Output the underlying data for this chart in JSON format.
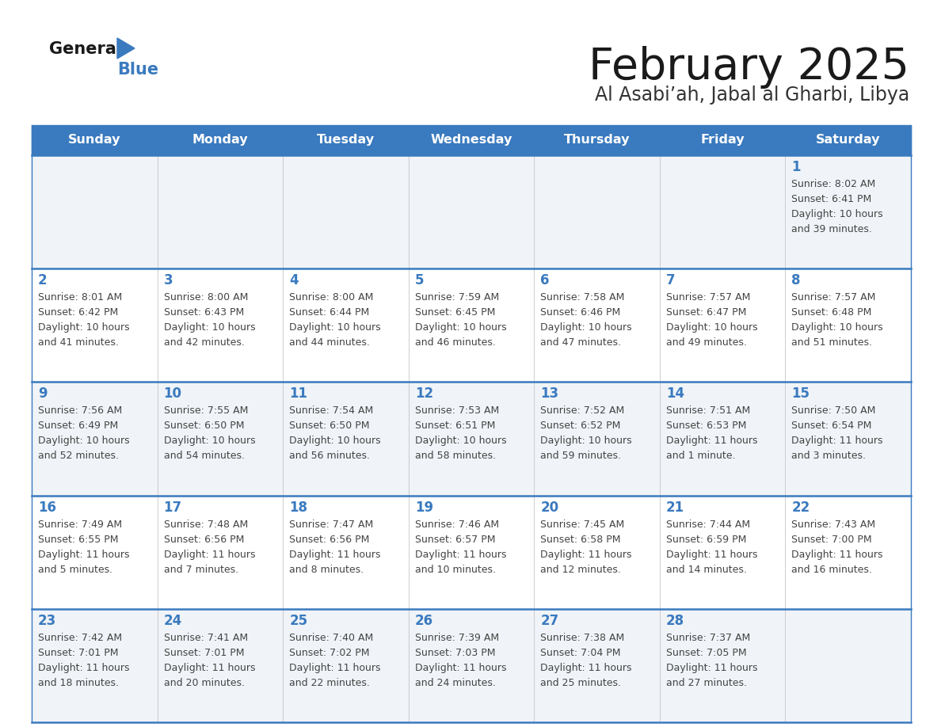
{
  "title": "February 2025",
  "subtitle": "Al Asabi’ah, Jabal al Gharbi, Libya",
  "header_color": "#3a7abf",
  "header_text_color": "#ffffff",
  "bg_color": "#ffffff",
  "cell_bg_light": "#f0f4f8",
  "day_headers": [
    "Sunday",
    "Monday",
    "Tuesday",
    "Wednesday",
    "Thursday",
    "Friday",
    "Saturday"
  ],
  "title_color": "#1a1a1a",
  "subtitle_color": "#333333",
  "day_number_color": "#3a7abf",
  "text_color": "#444444",
  "line_color": "#3a7abf",
  "calendar": [
    [
      null,
      null,
      null,
      null,
      null,
      null,
      {
        "day": 1,
        "sunrise": "8:02 AM",
        "sunset": "6:41 PM",
        "dl1": "Daylight: 10 hours",
        "dl2": "and 39 minutes."
      }
    ],
    [
      {
        "day": 2,
        "sunrise": "8:01 AM",
        "sunset": "6:42 PM",
        "dl1": "Daylight: 10 hours",
        "dl2": "and 41 minutes."
      },
      {
        "day": 3,
        "sunrise": "8:00 AM",
        "sunset": "6:43 PM",
        "dl1": "Daylight: 10 hours",
        "dl2": "and 42 minutes."
      },
      {
        "day": 4,
        "sunrise": "8:00 AM",
        "sunset": "6:44 PM",
        "dl1": "Daylight: 10 hours",
        "dl2": "and 44 minutes."
      },
      {
        "day": 5,
        "sunrise": "7:59 AM",
        "sunset": "6:45 PM",
        "dl1": "Daylight: 10 hours",
        "dl2": "and 46 minutes."
      },
      {
        "day": 6,
        "sunrise": "7:58 AM",
        "sunset": "6:46 PM",
        "dl1": "Daylight: 10 hours",
        "dl2": "and 47 minutes."
      },
      {
        "day": 7,
        "sunrise": "7:57 AM",
        "sunset": "6:47 PM",
        "dl1": "Daylight: 10 hours",
        "dl2": "and 49 minutes."
      },
      {
        "day": 8,
        "sunrise": "7:57 AM",
        "sunset": "6:48 PM",
        "dl1": "Daylight: 10 hours",
        "dl2": "and 51 minutes."
      }
    ],
    [
      {
        "day": 9,
        "sunrise": "7:56 AM",
        "sunset": "6:49 PM",
        "dl1": "Daylight: 10 hours",
        "dl2": "and 52 minutes."
      },
      {
        "day": 10,
        "sunrise": "7:55 AM",
        "sunset": "6:50 PM",
        "dl1": "Daylight: 10 hours",
        "dl2": "and 54 minutes."
      },
      {
        "day": 11,
        "sunrise": "7:54 AM",
        "sunset": "6:50 PM",
        "dl1": "Daylight: 10 hours",
        "dl2": "and 56 minutes."
      },
      {
        "day": 12,
        "sunrise": "7:53 AM",
        "sunset": "6:51 PM",
        "dl1": "Daylight: 10 hours",
        "dl2": "and 58 minutes."
      },
      {
        "day": 13,
        "sunrise": "7:52 AM",
        "sunset": "6:52 PM",
        "dl1": "Daylight: 10 hours",
        "dl2": "and 59 minutes."
      },
      {
        "day": 14,
        "sunrise": "7:51 AM",
        "sunset": "6:53 PM",
        "dl1": "Daylight: 11 hours",
        "dl2": "and 1 minute."
      },
      {
        "day": 15,
        "sunrise": "7:50 AM",
        "sunset": "6:54 PM",
        "dl1": "Daylight: 11 hours",
        "dl2": "and 3 minutes."
      }
    ],
    [
      {
        "day": 16,
        "sunrise": "7:49 AM",
        "sunset": "6:55 PM",
        "dl1": "Daylight: 11 hours",
        "dl2": "and 5 minutes."
      },
      {
        "day": 17,
        "sunrise": "7:48 AM",
        "sunset": "6:56 PM",
        "dl1": "Daylight: 11 hours",
        "dl2": "and 7 minutes."
      },
      {
        "day": 18,
        "sunrise": "7:47 AM",
        "sunset": "6:56 PM",
        "dl1": "Daylight: 11 hours",
        "dl2": "and 8 minutes."
      },
      {
        "day": 19,
        "sunrise": "7:46 AM",
        "sunset": "6:57 PM",
        "dl1": "Daylight: 11 hours",
        "dl2": "and 10 minutes."
      },
      {
        "day": 20,
        "sunrise": "7:45 AM",
        "sunset": "6:58 PM",
        "dl1": "Daylight: 11 hours",
        "dl2": "and 12 minutes."
      },
      {
        "day": 21,
        "sunrise": "7:44 AM",
        "sunset": "6:59 PM",
        "dl1": "Daylight: 11 hours",
        "dl2": "and 14 minutes."
      },
      {
        "day": 22,
        "sunrise": "7:43 AM",
        "sunset": "7:00 PM",
        "dl1": "Daylight: 11 hours",
        "dl2": "and 16 minutes."
      }
    ],
    [
      {
        "day": 23,
        "sunrise": "7:42 AM",
        "sunset": "7:01 PM",
        "dl1": "Daylight: 11 hours",
        "dl2": "and 18 minutes."
      },
      {
        "day": 24,
        "sunrise": "7:41 AM",
        "sunset": "7:01 PM",
        "dl1": "Daylight: 11 hours",
        "dl2": "and 20 minutes."
      },
      {
        "day": 25,
        "sunrise": "7:40 AM",
        "sunset": "7:02 PM",
        "dl1": "Daylight: 11 hours",
        "dl2": "and 22 minutes."
      },
      {
        "day": 26,
        "sunrise": "7:39 AM",
        "sunset": "7:03 PM",
        "dl1": "Daylight: 11 hours",
        "dl2": "and 24 minutes."
      },
      {
        "day": 27,
        "sunrise": "7:38 AM",
        "sunset": "7:04 PM",
        "dl1": "Daylight: 11 hours",
        "dl2": "and 25 minutes."
      },
      {
        "day": 28,
        "sunrise": "7:37 AM",
        "sunset": "7:05 PM",
        "dl1": "Daylight: 11 hours",
        "dl2": "and 27 minutes."
      },
      null
    ]
  ]
}
